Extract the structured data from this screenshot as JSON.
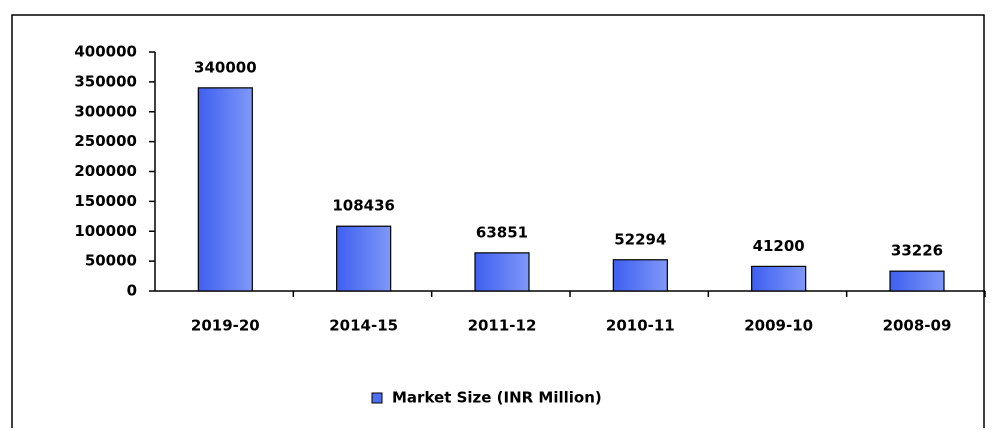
{
  "chart_data": {
    "type": "bar",
    "categories": [
      "2019-20",
      "2014-15",
      "2011-12",
      "2010-11",
      "2009-10",
      "2008-09"
    ],
    "series": [
      {
        "name": "Market Size (INR Million)",
        "color": "#4f6ff2",
        "values": [
          340000,
          108436,
          63851,
          52294,
          41200,
          33226
        ]
      }
    ],
    "ylim": [
      0,
      400000
    ],
    "yticks": [
      0,
      50000,
      100000,
      150000,
      200000,
      250000,
      300000,
      350000,
      400000
    ],
    "legend": "bottom"
  }
}
